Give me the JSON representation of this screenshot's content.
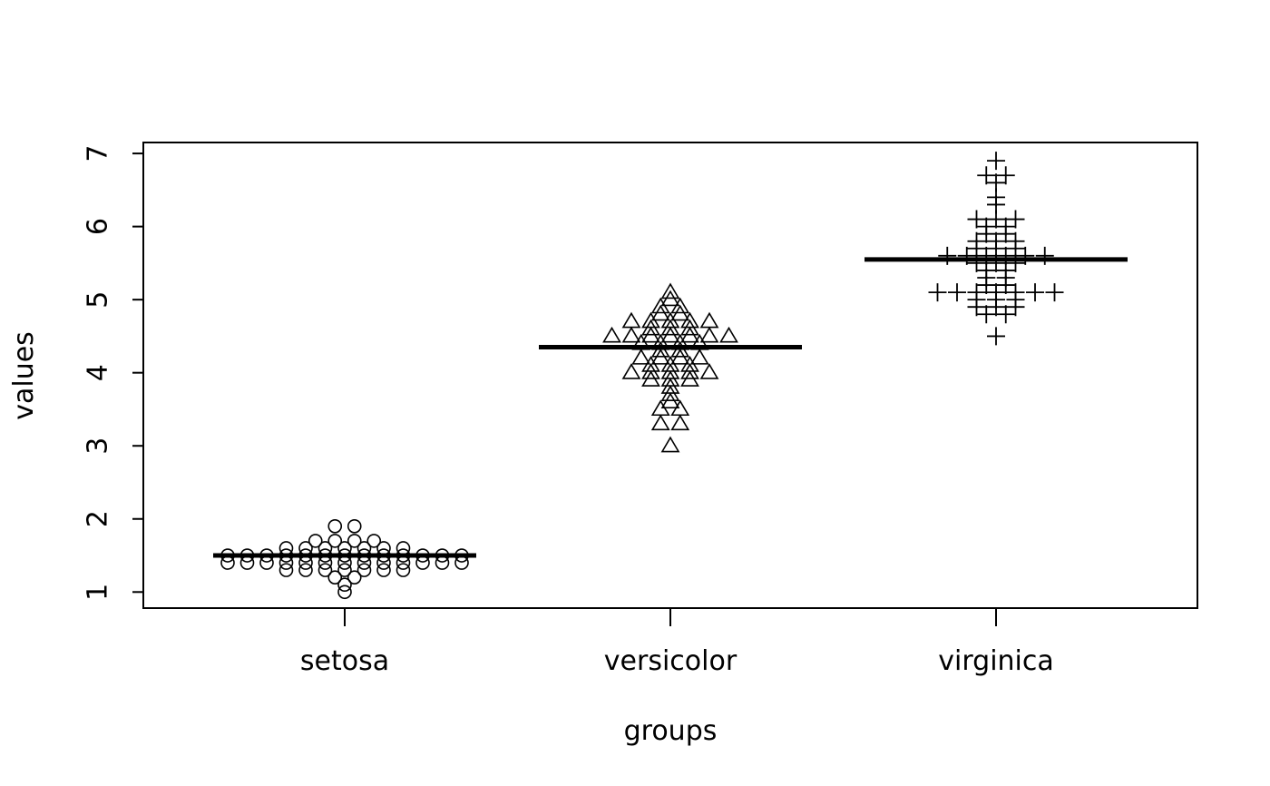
{
  "chart_data": {
    "type": "scatter",
    "subtype": "beeswarm",
    "xlabel": "groups",
    "ylabel": "values",
    "ylim": [
      0.78,
      7.15
    ],
    "yticks": [
      1,
      2,
      3,
      4,
      5,
      6,
      7
    ],
    "categories": [
      "setosa",
      "versicolor",
      "virginica"
    ],
    "median_line": true,
    "series": [
      {
        "category": "setosa",
        "marker": "circle",
        "median": 1.5,
        "values": [
          1.4,
          1.4,
          1.3,
          1.5,
          1.4,
          1.7,
          1.4,
          1.5,
          1.4,
          1.5,
          1.5,
          1.6,
          1.4,
          1.1,
          1.2,
          1.5,
          1.3,
          1.4,
          1.7,
          1.5,
          1.7,
          1.5,
          1.0,
          1.7,
          1.9,
          1.6,
          1.6,
          1.5,
          1.4,
          1.6,
          1.6,
          1.5,
          1.5,
          1.4,
          1.5,
          1.2,
          1.3,
          1.4,
          1.3,
          1.5,
          1.3,
          1.3,
          1.3,
          1.6,
          1.9,
          1.4,
          1.6,
          1.4,
          1.5,
          1.4
        ]
      },
      {
        "category": "versicolor",
        "marker": "triangle",
        "median": 4.35,
        "values": [
          4.7,
          4.5,
          4.9,
          4.0,
          4.6,
          4.5,
          4.7,
          3.3,
          4.6,
          3.9,
          3.5,
          4.2,
          4.0,
          4.7,
          3.6,
          4.4,
          4.5,
          4.1,
          4.5,
          3.9,
          4.8,
          4.0,
          4.9,
          4.7,
          4.3,
          4.4,
          4.8,
          5.0,
          4.5,
          3.5,
          3.8,
          3.7,
          3.9,
          5.1,
          4.5,
          4.5,
          4.7,
          4.4,
          4.1,
          4.0,
          4.4,
          4.6,
          4.0,
          3.3,
          4.2,
          4.2,
          4.2,
          4.3,
          3.0,
          4.1
        ]
      },
      {
        "category": "virginica",
        "marker": "plus",
        "median": 5.55,
        "values": [
          6.0,
          5.1,
          5.9,
          5.6,
          5.8,
          6.6,
          4.5,
          6.3,
          5.8,
          6.1,
          5.1,
          5.3,
          5.5,
          5.0,
          5.1,
          5.3,
          5.5,
          6.7,
          6.9,
          5.0,
          5.7,
          4.9,
          6.7,
          4.9,
          5.7,
          6.0,
          4.8,
          4.9,
          5.6,
          5.8,
          6.1,
          6.4,
          5.6,
          5.1,
          5.6,
          6.1,
          5.6,
          5.5,
          4.8,
          5.4,
          5.6,
          5.1,
          5.1,
          5.9,
          5.7,
          5.2,
          5.0,
          5.2,
          5.4,
          5.1
        ]
      }
    ]
  }
}
